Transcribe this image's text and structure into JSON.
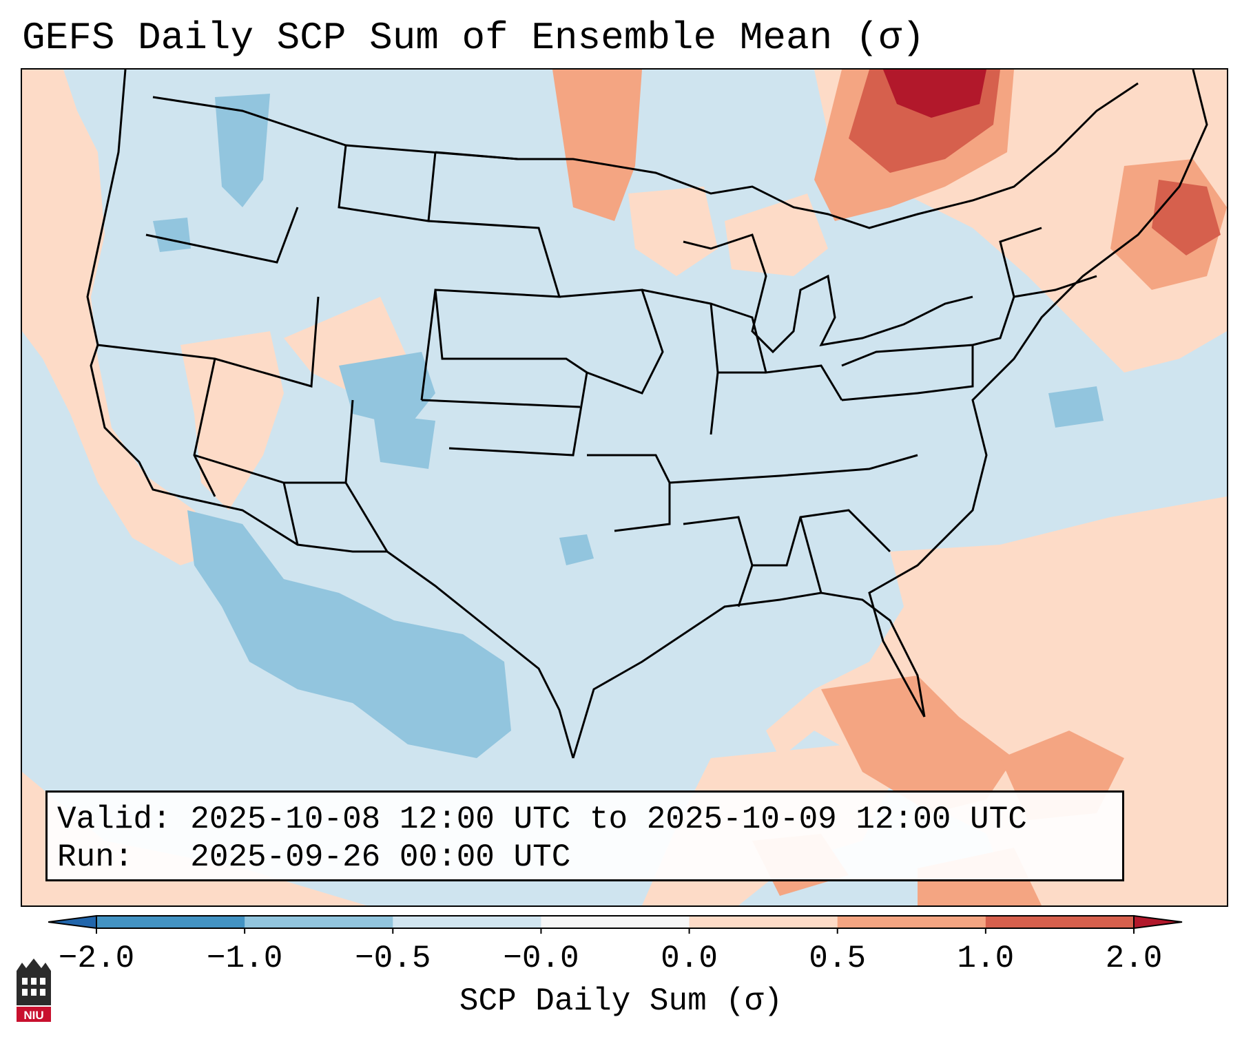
{
  "title": "GEFS Daily SCP Sum of Ensemble Mean (σ)",
  "info": {
    "valid_line": "Valid: 2025-10-08 12:00 UTC to 2025-10-09 12:00 UTC",
    "run_line": "Run:   2025-09-26 00:00 UTC"
  },
  "colorbar": {
    "label": "SCP Daily Sum (σ)",
    "ticks": [
      "−2.0",
      "−1.0",
      "−0.5",
      "−0.0",
      "0.0",
      "0.5",
      "1.0",
      "2.0"
    ],
    "colors": {
      "under": "#2166ac",
      "n2_n1": "#4393c3",
      "n1_n05": "#92c5de",
      "n05_0": "#d1e5f0",
      "zero": "#f7f7f7",
      "p0_p05": "#fddbc7",
      "p05_p1": "#f4a582",
      "p1_p2": "#d6604d",
      "over": "#b2182b"
    }
  },
  "logo": {
    "text": "NIU",
    "icon": "niu-logo-icon"
  },
  "chart_data": {
    "type": "heatmap",
    "title": "GEFS Daily SCP Sum of Ensemble Mean (σ)",
    "colorbar_label": "SCP Daily Sum (σ)",
    "levels": [
      -2.0,
      -1.0,
      -0.5,
      -0.0,
      0.0,
      0.5,
      1.0,
      2.0
    ],
    "extend": "both",
    "region": "Contiguous United States with northern Mexico, southern Canada, Gulf of Mexico and western Atlantic",
    "features": [
      {
        "area": "Northern Ontario / western Quebec",
        "range": "1.0 to 2.0"
      },
      {
        "area": "Western Maine / northern New England",
        "range": "1.0 to 2.0"
      },
      {
        "area": "Florida, Gulf of Mexico and western Atlantic",
        "range": "0.0 to 1.0"
      },
      {
        "area": "California coast and Nevada",
        "range": "0.0 to 0.5"
      },
      {
        "area": "Colorado and New Mexico",
        "range": "-1.0 to -0.5"
      },
      {
        "area": "Northern Mexico and Baja California",
        "range": "-1.0 to -0.5"
      },
      {
        "area": "Central and eastern United States",
        "range": "-0.5 to 0.0"
      }
    ]
  }
}
